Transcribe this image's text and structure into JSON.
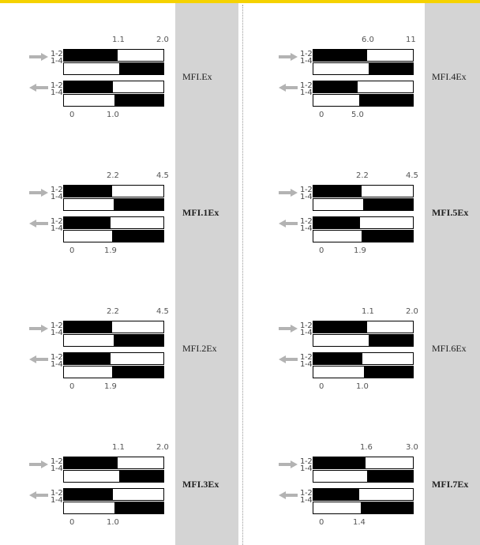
{
  "colors": {
    "accent_bar": "#f5d200",
    "label_column": "#d4d4d4",
    "arrow": "#b3b3b3",
    "block": "#000000"
  },
  "panels": [
    {
      "title": "MFI.Ex",
      "bold": false,
      "top_ticks": [
        "1.1",
        "2.0"
      ],
      "bottom_ticks": [
        "0",
        "1.0"
      ],
      "split_top": 1.1,
      "span_top": 2.0,
      "split_bottom": 1.0,
      "span_bottom": 2.0,
      "arrow_right": "arrow-right-icon",
      "arrow_left": "arrow-left-icon",
      "row_labels": {
        "upper_a": "1-2",
        "upper_b": "1-4",
        "lower_a": "1-2",
        "lower_b": "1-4"
      }
    },
    {
      "title": "MFI.1Ex",
      "bold": true,
      "top_ticks": [
        "2.2",
        "4.5"
      ],
      "bottom_ticks": [
        "0",
        "1.9"
      ],
      "split_top": 2.2,
      "span_top": 4.5,
      "split_bottom": 1.9,
      "span_bottom": 4.0,
      "arrow_right": "arrow-right-icon",
      "arrow_left": "arrow-left-icon",
      "row_labels": {
        "upper_a": "1-2",
        "upper_b": "1-4",
        "lower_a": "1-2",
        "lower_b": "1-4"
      }
    },
    {
      "title": "MFI.2Ex",
      "bold": false,
      "top_ticks": [
        "2.2",
        "4.5"
      ],
      "bottom_ticks": [
        "0",
        "1.9"
      ],
      "split_top": 2.2,
      "span_top": 4.5,
      "split_bottom": 1.9,
      "span_bottom": 4.0,
      "arrow_right": "arrow-right-icon",
      "arrow_left": "arrow-left-icon",
      "row_labels": {
        "upper_a": "1-2",
        "upper_b": "1-4",
        "lower_a": "1-2",
        "lower_b": "1-4"
      }
    },
    {
      "title": "MFI.3Ex",
      "bold": true,
      "top_ticks": [
        "1.1",
        "2.0"
      ],
      "bottom_ticks": [
        "0",
        "1.0"
      ],
      "split_top": 1.1,
      "span_top": 2.0,
      "split_bottom": 1.0,
      "span_bottom": 2.0,
      "arrow_right": "arrow-right-icon",
      "arrow_left": "arrow-left-icon",
      "row_labels": {
        "upper_a": "1-2",
        "upper_b": "1-4",
        "lower_a": "1-2",
        "lower_b": "1-4"
      }
    },
    {
      "title": "MFI.4Ex",
      "bold": false,
      "top_ticks": [
        "6.0",
        "11"
      ],
      "bottom_ticks": [
        "0",
        "5.0"
      ],
      "split_top": 6.0,
      "span_top": 11.0,
      "split_bottom": 5.0,
      "span_bottom": 11.0,
      "arrow_right": "arrow-right-icon",
      "arrow_left": "arrow-left-icon",
      "row_labels": {
        "upper_a": "1-2",
        "upper_b": "1-4",
        "lower_a": "1-2",
        "lower_b": "1-4"
      }
    },
    {
      "title": "MFI.5Ex",
      "bold": true,
      "top_ticks": [
        "2.2",
        "4.5"
      ],
      "bottom_ticks": [
        "0",
        "1.9"
      ],
      "split_top": 2.2,
      "span_top": 4.5,
      "split_bottom": 1.9,
      "span_bottom": 4.0,
      "arrow_right": "arrow-right-icon",
      "arrow_left": "arrow-left-icon",
      "row_labels": {
        "upper_a": "1-2",
        "upper_b": "1-4",
        "lower_a": "1-2",
        "lower_b": "1-4"
      }
    },
    {
      "title": "MFI.6Ex",
      "bold": false,
      "top_ticks": [
        "1.1",
        "2.0"
      ],
      "bottom_ticks": [
        "0",
        "1.0"
      ],
      "split_top": 1.1,
      "span_top": 2.0,
      "split_bottom": 1.0,
      "span_bottom": 2.0,
      "arrow_right": "arrow-right-icon",
      "arrow_left": "arrow-left-icon",
      "row_labels": {
        "upper_a": "1-2",
        "upper_b": "1-4",
        "lower_a": "1-2",
        "lower_b": "1-4"
      }
    },
    {
      "title": "MFI.7Ex",
      "bold": true,
      "top_ticks": [
        "1.6",
        "3.0"
      ],
      "bottom_ticks": [
        "0",
        "1.4"
      ],
      "split_top": 1.6,
      "span_top": 3.0,
      "split_bottom": 1.4,
      "span_bottom": 3.0,
      "arrow_right": "arrow-right-icon",
      "arrow_left": "arrow-left-icon",
      "row_labels": {
        "upper_a": "1-2",
        "upper_b": "1-4",
        "lower_a": "1-2",
        "lower_b": "1-4"
      }
    }
  ]
}
